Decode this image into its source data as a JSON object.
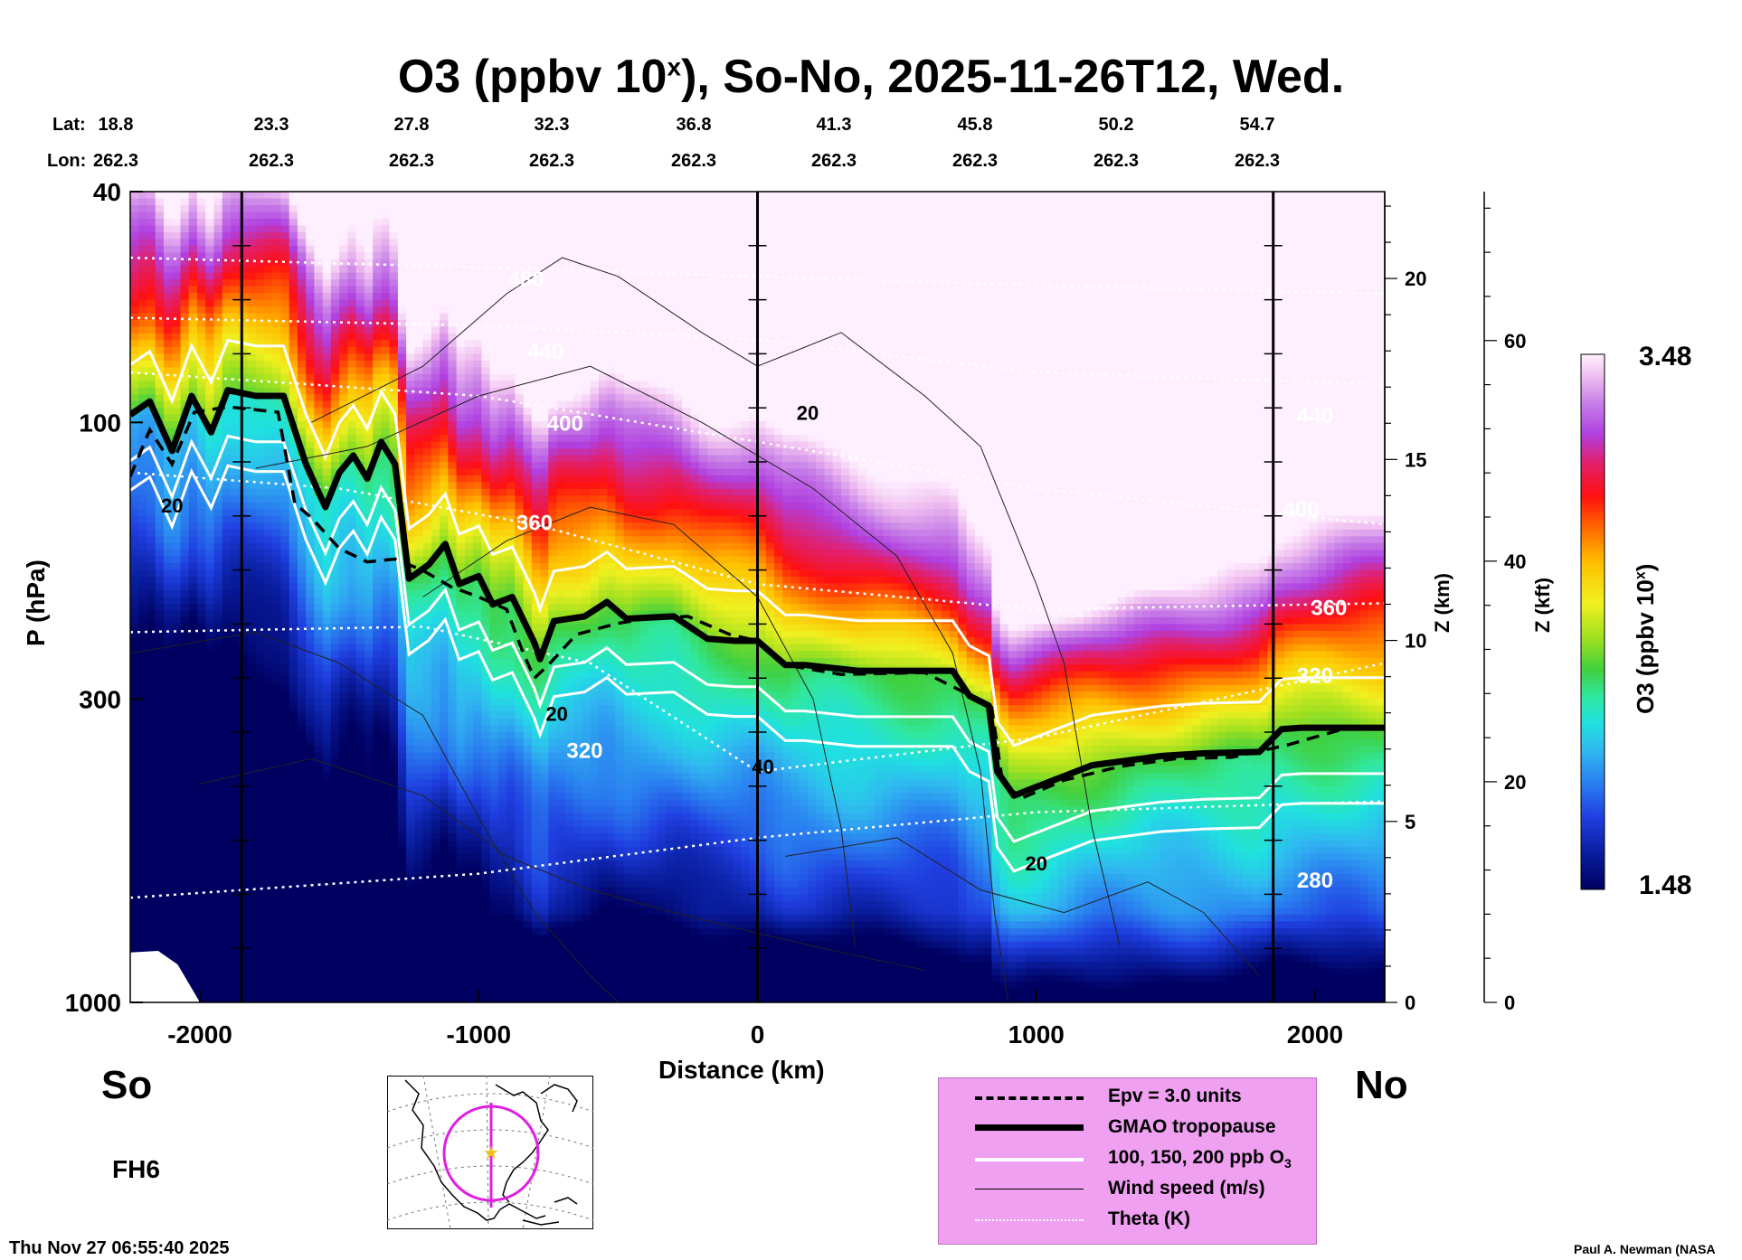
{
  "title_prefix": "O3 (ppbv 10",
  "title_sup": "x",
  "title_suffix": "), So-No, 2025-11-26T12, Wed.",
  "header": {
    "lat_label": "Lat:",
    "lon_label": "Lon:",
    "lats": [
      "18.8",
      "23.3",
      "27.8",
      "32.3",
      "36.8",
      "41.3",
      "45.8",
      "50.2",
      "54.7"
    ],
    "lons": [
      "262.3",
      "262.3",
      "262.3",
      "262.3",
      "262.3",
      "262.3",
      "262.3",
      "262.3",
      "262.3"
    ]
  },
  "labels": {
    "south": "So",
    "north": "No",
    "forecast_hour": "FH6",
    "timestamp": "Thu Nov 27 06:55:40 2025",
    "credit": "Paul A. Newman (NASA"
  },
  "legend": [
    {
      "label": "Epv = 3.0 units"
    },
    {
      "label": "GMAO tropopause"
    },
    {
      "label": "100, 150, 200 ppb O",
      "sub": "3"
    },
    {
      "label": "Wind speed (m/s)"
    },
    {
      "label": "Theta (K)"
    }
  ],
  "colors": {
    "legend_bg": "#f0a0f0",
    "map_circle": "#e020e0",
    "map_star": "#f0c020"
  },
  "colorbar": {
    "title": "O3 (ppbv 10",
    "title_sup": "x",
    "title_suffix": ")",
    "max_label": "3.48",
    "min_label": "1.48"
  },
  "chart_data": {
    "type": "heatmap",
    "title": "O3 (ppbv 10^x), So-No, 2025-11-26T12, Wed.",
    "xlabel": "Distance (km)",
    "ylabel": "P (hPa)",
    "right_axis1_label": "Z (km)",
    "right_axis2_label": "Z (kft)",
    "xlim": [
      -2250,
      2250
    ],
    "ylim_hpa": [
      1000,
      40
    ],
    "x_ticks": [
      -2000,
      -1000,
      0,
      1000,
      2000
    ],
    "x_tick_labels": [
      "-2000",
      "-1000",
      "0",
      "1000",
      "2000"
    ],
    "y_ticks": [
      40,
      100,
      300,
      1000
    ],
    "y_tick_labels": [
      "40",
      "100",
      "300",
      "1000"
    ],
    "z_km_ticks": [
      0,
      5,
      10,
      15,
      20
    ],
    "z_km_tick_labels": [
      "0",
      "5",
      "10",
      "15",
      "20"
    ],
    "z_kft_ticks": [
      0,
      20,
      40,
      60
    ],
    "z_kft_tick_labels": [
      "0",
      "20",
      "40",
      "60"
    ],
    "colorbar_range": [
      1.48,
      3.48
    ],
    "vertical_markers_km": [
      -1850,
      0,
      1850
    ],
    "theta_isentropes": [
      {
        "label": "480",
        "points": [
          [
            -2250,
            52
          ],
          [
            -1000,
            54
          ],
          [
            0,
            56
          ],
          [
            1000,
            58
          ],
          [
            2250,
            60
          ]
        ]
      },
      {
        "label": "440",
        "points": [
          [
            -2250,
            66
          ],
          [
            -1000,
            68
          ],
          [
            0,
            72
          ],
          [
            1000,
            82
          ],
          [
            2250,
            86
          ]
        ]
      },
      {
        "label": "400",
        "points": [
          [
            -2250,
            82
          ],
          [
            -1000,
            90
          ],
          [
            0,
            108
          ],
          [
            1000,
            130
          ],
          [
            2250,
            150
          ]
        ]
      },
      {
        "label": "360",
        "points": [
          [
            -2250,
            122
          ],
          [
            -1500,
            130
          ],
          [
            -800,
            150
          ],
          [
            0,
            190
          ],
          [
            1000,
            210
          ],
          [
            2250,
            205
          ]
        ]
      },
      {
        "label": "320",
        "points": [
          [
            -2250,
            230
          ],
          [
            -1200,
            225
          ],
          [
            -600,
            260
          ],
          [
            0,
            400
          ],
          [
            1000,
            350
          ],
          [
            2250,
            260
          ]
        ]
      },
      {
        "label": "280",
        "points": [
          [
            -2250,
            660
          ],
          [
            -1000,
            600
          ],
          [
            0,
            520
          ],
          [
            1000,
            470
          ],
          [
            2250,
            450
          ]
        ]
      }
    ],
    "theta_labels": [
      {
        "text": "480",
        "x": -830,
        "p": 57
      },
      {
        "text": "440",
        "x": -760,
        "p": 76
      },
      {
        "text": "400",
        "x": -690,
        "p": 101
      },
      {
        "text": "360",
        "x": -800,
        "p": 150
      },
      {
        "text": "320",
        "x": -620,
        "p": 370
      },
      {
        "text": "440",
        "x": 2000,
        "p": 98
      },
      {
        "text": "400",
        "x": 1950,
        "p": 142
      },
      {
        "text": "360",
        "x": 2050,
        "p": 210
      },
      {
        "text": "320",
        "x": 2000,
        "p": 275
      },
      {
        "text": "280",
        "x": 2000,
        "p": 620
      }
    ],
    "wind_labels": [
      {
        "text": "20",
        "x": -2100,
        "p": 140
      },
      {
        "text": "20",
        "x": 180,
        "p": 97
      },
      {
        "text": "20",
        "x": -720,
        "p": 320
      },
      {
        "text": "40",
        "x": 20,
        "p": 395
      },
      {
        "text": "20",
        "x": 1000,
        "p": 580
      }
    ],
    "gmao_tropopause": [
      [
        -2250,
        97
      ],
      [
        -2180,
        92
      ],
      [
        -2100,
        112
      ],
      [
        -2030,
        90
      ],
      [
        -1960,
        104
      ],
      [
        -1900,
        88
      ],
      [
        -1800,
        90
      ],
      [
        -1700,
        90
      ],
      [
        -1620,
        118
      ],
      [
        -1550,
        140
      ],
      [
        -1500,
        122
      ],
      [
        -1450,
        114
      ],
      [
        -1400,
        125
      ],
      [
        -1350,
        108
      ],
      [
        -1300,
        118
      ],
      [
        -1250,
        186
      ],
      [
        -1180,
        176
      ],
      [
        -1120,
        162
      ],
      [
        -1070,
        190
      ],
      [
        -1000,
        184
      ],
      [
        -950,
        206
      ],
      [
        -880,
        200
      ],
      [
        -800,
        240
      ],
      [
        -780,
        256
      ],
      [
        -730,
        220
      ],
      [
        -620,
        216
      ],
      [
        -540,
        204
      ],
      [
        -470,
        218
      ],
      [
        -300,
        216
      ],
      [
        -180,
        236
      ],
      [
        -80,
        238
      ],
      [
        0,
        238
      ],
      [
        100,
        262
      ],
      [
        170,
        262
      ],
      [
        360,
        268
      ],
      [
        560,
        268
      ],
      [
        700,
        268
      ],
      [
        760,
        296
      ],
      [
        830,
        308
      ],
      [
        860,
        400
      ],
      [
        920,
        440
      ],
      [
        1050,
        416
      ],
      [
        1200,
        390
      ],
      [
        1450,
        376
      ],
      [
        1600,
        372
      ],
      [
        1800,
        370
      ],
      [
        1880,
        338
      ],
      [
        1950,
        336
      ],
      [
        2250,
        336
      ]
    ],
    "epv_contour": [
      [
        -2250,
        124
      ],
      [
        -2180,
        103
      ],
      [
        -2100,
        118
      ],
      [
        -2020,
        96
      ],
      [
        -1900,
        94
      ],
      [
        -1720,
        96
      ],
      [
        -1660,
        138
      ],
      [
        -1600,
        146
      ],
      [
        -1500,
        165
      ],
      [
        -1400,
        174
      ],
      [
        -1300,
        172
      ],
      [
        -1200,
        180
      ],
      [
        -1100,
        192
      ],
      [
        -1000,
        200
      ],
      [
        -900,
        210
      ],
      [
        -840,
        250
      ],
      [
        -800,
        276
      ],
      [
        -750,
        262
      ],
      [
        -650,
        232
      ],
      [
        -500,
        222
      ],
      [
        -400,
        218
      ],
      [
        -250,
        216
      ],
      [
        -100,
        232
      ],
      [
        0,
        238
      ],
      [
        100,
        262
      ],
      [
        300,
        272
      ],
      [
        600,
        270
      ],
      [
        760,
        295
      ],
      [
        840,
        310
      ],
      [
        880,
        420
      ],
      [
        950,
        444
      ],
      [
        1100,
        414
      ],
      [
        1300,
        392
      ],
      [
        1500,
        380
      ],
      [
        1700,
        378
      ],
      [
        1900,
        360
      ],
      [
        2100,
        338
      ],
      [
        2250,
        335
      ]
    ],
    "colormap_O3_log10": [
      [
        1.48,
        "#000060"
      ],
      [
        1.62,
        "#0a1ea0"
      ],
      [
        1.75,
        "#1f3fe0"
      ],
      [
        1.88,
        "#2a80f0"
      ],
      [
        2.0,
        "#30b8f0"
      ],
      [
        2.1,
        "#20e0e0"
      ],
      [
        2.2,
        "#30e8a0"
      ],
      [
        2.3,
        "#40d040"
      ],
      [
        2.42,
        "#a0e020"
      ],
      [
        2.55,
        "#f0f020"
      ],
      [
        2.7,
        "#ffc000"
      ],
      [
        2.82,
        "#ff7000"
      ],
      [
        2.95,
        "#ff1010"
      ],
      [
        3.08,
        "#e02070"
      ],
      [
        3.18,
        "#b040e0"
      ],
      [
        3.3,
        "#c880e8"
      ],
      [
        3.4,
        "#f0c0f0"
      ],
      [
        3.48,
        "#fff0ff"
      ]
    ]
  }
}
